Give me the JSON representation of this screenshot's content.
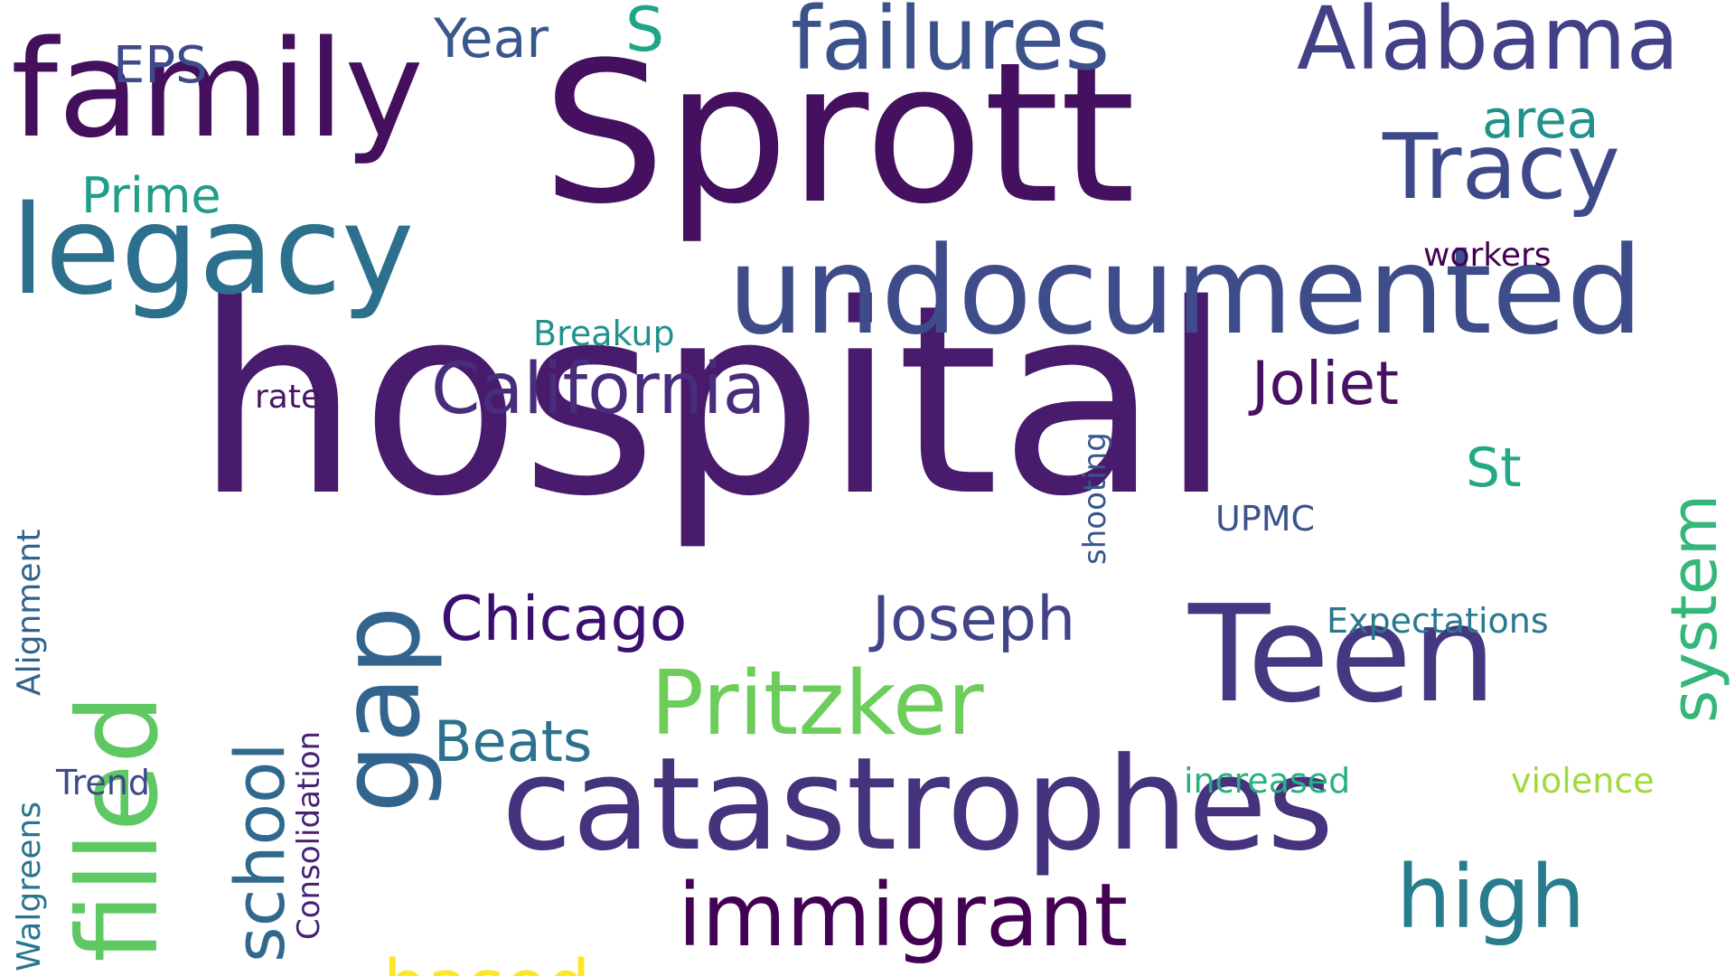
{
  "words": [
    {
      "id": "hospital",
      "text": "hospital",
      "color": "#481b6d"
    },
    {
      "id": "sprott",
      "text": "Sprott",
      "color": "#44105f"
    },
    {
      "id": "family",
      "text": "family",
      "color": "#440f5d"
    },
    {
      "id": "catastrophes",
      "text": "catastrophes",
      "color": "#45337d"
    },
    {
      "id": "undocumented",
      "text": "undocumented",
      "color": "#3e4c8a"
    },
    {
      "id": "legacy",
      "text": "legacy",
      "color": "#2d708e"
    },
    {
      "id": "filled",
      "text": "filled",
      "color": "#5ec962"
    },
    {
      "id": "gap",
      "text": "gap",
      "color": "#32648e"
    },
    {
      "id": "failures",
      "text": "failures",
      "color": "#3b528b"
    },
    {
      "id": "alabama",
      "text": "Alabama",
      "color": "#424086"
    },
    {
      "id": "teen",
      "text": "Teen",
      "color": "#453781"
    },
    {
      "id": "tracy",
      "text": "Tracy",
      "color": "#3e4989"
    },
    {
      "id": "immigrant",
      "text": "immigrant",
      "color": "#440154"
    },
    {
      "id": "pritzker",
      "text": "Pritzker",
      "color": "#6ccd5a"
    },
    {
      "id": "california",
      "text": "California",
      "color": "#472d7b"
    },
    {
      "id": "school",
      "text": "school",
      "color": "#31688e"
    },
    {
      "id": "high",
      "text": "high",
      "color": "#287c8e"
    },
    {
      "id": "system",
      "text": "system",
      "color": "#35b779"
    },
    {
      "id": "chicago",
      "text": "Chicago",
      "color": "#3b0f70"
    },
    {
      "id": "joseph",
      "text": "Joseph",
      "color": "#414487"
    },
    {
      "id": "joliet",
      "text": "Joliet",
      "color": "#471063"
    },
    {
      "id": "beats",
      "text": "Beats",
      "color": "#2c728e"
    },
    {
      "id": "based",
      "text": "based",
      "color": "#fde725"
    },
    {
      "id": "st",
      "text": "St",
      "color": "#22a884"
    },
    {
      "id": "area",
      "text": "area",
      "color": "#21918c"
    },
    {
      "id": "prime",
      "text": "Prime",
      "color": "#1f9e89"
    },
    {
      "id": "year",
      "text": "Year",
      "color": "#38588c"
    },
    {
      "id": "eps",
      "text": "EPS",
      "color": "#3e4a89"
    },
    {
      "id": "s",
      "text": "S",
      "color": "#20a486"
    },
    {
      "id": "workers",
      "text": "workers",
      "color": "#440154"
    },
    {
      "id": "breakup",
      "text": "Breakup",
      "color": "#21918c"
    },
    {
      "id": "rate",
      "text": "rate",
      "color": "#471365"
    },
    {
      "id": "shooting",
      "text": "shooting",
      "color": "#39568c"
    },
    {
      "id": "upmc",
      "text": "UPMC",
      "color": "#3b528b"
    },
    {
      "id": "expectations",
      "text": "Expectations",
      "color": "#2a788e"
    },
    {
      "id": "increased",
      "text": "increased",
      "color": "#2ab07f"
    },
    {
      "id": "violence",
      "text": "violence",
      "color": "#a0da39"
    },
    {
      "id": "alignment",
      "text": "Alignment",
      "color": "#33638d"
    },
    {
      "id": "walgreens",
      "text": "Walgreens",
      "color": "#2a768e"
    },
    {
      "id": "trend",
      "text": "Trend",
      "color": "#3e4989"
    },
    {
      "id": "consolidation",
      "text": "Consolidation",
      "color": "#482173"
    }
  ]
}
